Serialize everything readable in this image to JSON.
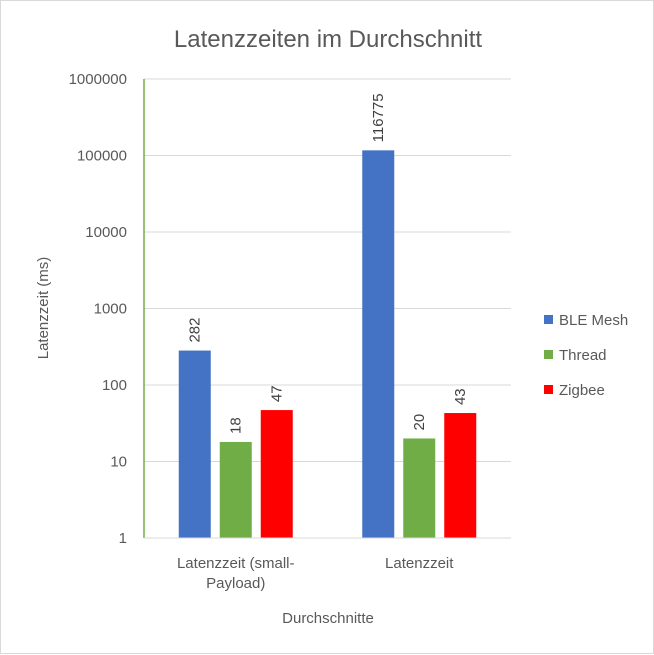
{
  "chart_data": {
    "type": "bar",
    "title": "Latenzzeiten im Durchschnitt",
    "xlabel": "Durchschnitte",
    "ylabel": "Latenzzeit  (ms)",
    "yscale": "log",
    "ylim": [
      1,
      1000000
    ],
    "yticks": [
      "1",
      "10",
      "100",
      "1000",
      "10000",
      "100000",
      "1000000"
    ],
    "grid": true,
    "legend_position": "right",
    "categories": [
      [
        "Latenzzeit (small-",
        "Payload)"
      ],
      [
        "Latenzzeit"
      ]
    ],
    "series": [
      {
        "name": "BLE Mesh",
        "color": "#4472c4",
        "values": [
          282,
          116775
        ]
      },
      {
        "name": "Thread",
        "color": "#70ad47",
        "values": [
          18,
          20
        ]
      },
      {
        "name": "Zigbee",
        "color": "#ff0000",
        "values": [
          47,
          43
        ]
      }
    ]
  }
}
